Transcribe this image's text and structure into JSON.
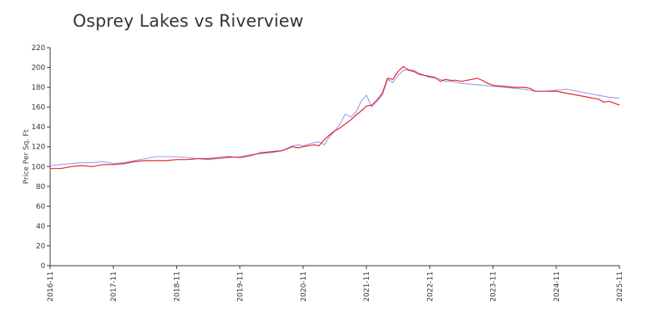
{
  "chart_data": {
    "type": "line",
    "title": "Osprey Lakes vs Riverview",
    "xlabel": "",
    "ylabel": "Price Per Sq. Ft",
    "ylim": [
      0,
      220
    ],
    "yticks": [
      0,
      20,
      40,
      60,
      80,
      100,
      120,
      140,
      160,
      180,
      200,
      220
    ],
    "xticks": [
      "2016-11",
      "2017-11",
      "2018-11",
      "2019-11",
      "2020-11",
      "2021-11",
      "2022-11",
      "2023-11",
      "2024-11",
      "2025-11"
    ],
    "xlim": [
      "2016-11",
      "2025-11"
    ],
    "grid": false,
    "legend": "none",
    "series": [
      {
        "color": "#9999ee",
        "points": [
          [
            "2016-11",
            101
          ],
          [
            "2017-01",
            102
          ],
          [
            "2017-03",
            103
          ],
          [
            "2017-05",
            104
          ],
          [
            "2017-07",
            104
          ],
          [
            "2017-09",
            105
          ],
          [
            "2017-11",
            103
          ],
          [
            "2018-01",
            104
          ],
          [
            "2018-03",
            106
          ],
          [
            "2018-05",
            108
          ],
          [
            "2018-07",
            110
          ],
          [
            "2018-09",
            110
          ],
          [
            "2018-11",
            110
          ],
          [
            "2019-01",
            109
          ],
          [
            "2019-03",
            108
          ],
          [
            "2019-05",
            107
          ],
          [
            "2019-07",
            108
          ],
          [
            "2019-09",
            109
          ],
          [
            "2019-11",
            110
          ],
          [
            "2020-01",
            112
          ],
          [
            "2020-03",
            113
          ],
          [
            "2020-05",
            114
          ],
          [
            "2020-07",
            116
          ],
          [
            "2020-09",
            121
          ],
          [
            "2020-10",
            122
          ],
          [
            "2020-11",
            121
          ],
          [
            "2021-01",
            124
          ],
          [
            "2021-02",
            125
          ],
          [
            "2021-03",
            122
          ],
          [
            "2021-04",
            130
          ],
          [
            "2021-05",
            136
          ],
          [
            "2021-06",
            143
          ],
          [
            "2021-07",
            153
          ],
          [
            "2021-08",
            150
          ],
          [
            "2021-09",
            155
          ],
          [
            "2021-10",
            166
          ],
          [
            "2021-11",
            172
          ],
          [
            "2021-12",
            160
          ],
          [
            "2022-01",
            166
          ],
          [
            "2022-02",
            172
          ],
          [
            "2022-03",
            188
          ],
          [
            "2022-04",
            185
          ],
          [
            "2022-05",
            192
          ],
          [
            "2022-06",
            197
          ],
          [
            "2022-07",
            198
          ],
          [
            "2022-08",
            197
          ],
          [
            "2022-09",
            194
          ],
          [
            "2022-10",
            192
          ],
          [
            "2022-11",
            190
          ],
          [
            "2022-12",
            189
          ],
          [
            "2023-01",
            188
          ],
          [
            "2023-02",
            186
          ],
          [
            "2023-03",
            186
          ],
          [
            "2023-04",
            185
          ],
          [
            "2023-05",
            184
          ],
          [
            "2023-07",
            183
          ],
          [
            "2023-09",
            182
          ],
          [
            "2023-11",
            181
          ],
          [
            "2024-01",
            180
          ],
          [
            "2024-03",
            179
          ],
          [
            "2024-05",
            178
          ],
          [
            "2024-07",
            176
          ],
          [
            "2024-09",
            176
          ],
          [
            "2024-11",
            177
          ],
          [
            "2025-01",
            178
          ],
          [
            "2025-03",
            176
          ],
          [
            "2025-05",
            174
          ],
          [
            "2025-07",
            172
          ],
          [
            "2025-09",
            170
          ],
          [
            "2025-11",
            169
          ]
        ]
      },
      {
        "color": "#e8232a",
        "points": [
          [
            "2016-11",
            98
          ],
          [
            "2017-01",
            98
          ],
          [
            "2017-03",
            100
          ],
          [
            "2017-05",
            101
          ],
          [
            "2017-07",
            100
          ],
          [
            "2017-09",
            102
          ],
          [
            "2017-11",
            102
          ],
          [
            "2018-01",
            103
          ],
          [
            "2018-03",
            105
          ],
          [
            "2018-05",
            106
          ],
          [
            "2018-07",
            106
          ],
          [
            "2018-09",
            106
          ],
          [
            "2018-11",
            107
          ],
          [
            "2019-01",
            107
          ],
          [
            "2019-03",
            108
          ],
          [
            "2019-05",
            108
          ],
          [
            "2019-07",
            109
          ],
          [
            "2019-09",
            110
          ],
          [
            "2019-11",
            109
          ],
          [
            "2020-01",
            111
          ],
          [
            "2020-03",
            114
          ],
          [
            "2020-05",
            115
          ],
          [
            "2020-07",
            116
          ],
          [
            "2020-09",
            120
          ],
          [
            "2020-10",
            119
          ],
          [
            "2020-11",
            120
          ],
          [
            "2021-01",
            122
          ],
          [
            "2021-02",
            121
          ],
          [
            "2021-03",
            127
          ],
          [
            "2021-04",
            132
          ],
          [
            "2021-05",
            136
          ],
          [
            "2021-06",
            139
          ],
          [
            "2021-07",
            143
          ],
          [
            "2021-08",
            147
          ],
          [
            "2021-09",
            152
          ],
          [
            "2021-10",
            156
          ],
          [
            "2021-11",
            161
          ],
          [
            "2021-12",
            162
          ],
          [
            "2022-01",
            167
          ],
          [
            "2022-02",
            174
          ],
          [
            "2022-03",
            189
          ],
          [
            "2022-04",
            188
          ],
          [
            "2022-05",
            196
          ],
          [
            "2022-06",
            201
          ],
          [
            "2022-07",
            197
          ],
          [
            "2022-08",
            196
          ],
          [
            "2022-09",
            193
          ],
          [
            "2022-10",
            192
          ],
          [
            "2022-11",
            191
          ],
          [
            "2022-12",
            190
          ],
          [
            "2023-01",
            186
          ],
          [
            "2023-02",
            188
          ],
          [
            "2023-03",
            187
          ],
          [
            "2023-04",
            187
          ],
          [
            "2023-05",
            186
          ],
          [
            "2023-07",
            188
          ],
          [
            "2023-08",
            189
          ],
          [
            "2023-09",
            187
          ],
          [
            "2023-10",
            184
          ],
          [
            "2023-11",
            182
          ],
          [
            "2024-01",
            181
          ],
          [
            "2024-03",
            180
          ],
          [
            "2024-05",
            180
          ],
          [
            "2024-06",
            179
          ],
          [
            "2024-07",
            176
          ],
          [
            "2024-09",
            176
          ],
          [
            "2024-11",
            176
          ],
          [
            "2025-01",
            174
          ],
          [
            "2025-03",
            172
          ],
          [
            "2025-05",
            170
          ],
          [
            "2025-07",
            168
          ],
          [
            "2025-08",
            165
          ],
          [
            "2025-09",
            166
          ],
          [
            "2025-11",
            162
          ]
        ]
      }
    ]
  }
}
